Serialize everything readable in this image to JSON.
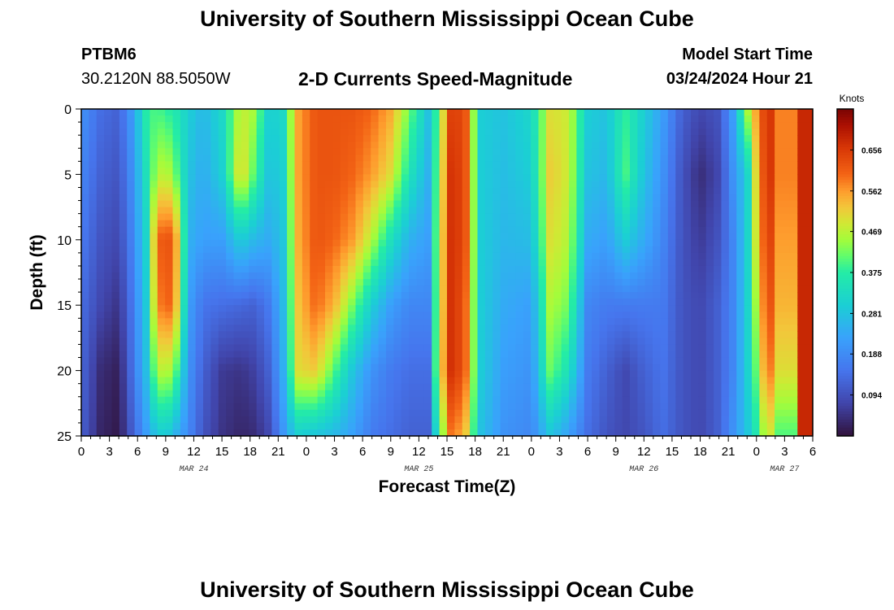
{
  "header": {
    "title": "University of Southern Mississippi Ocean Cube",
    "station": "PTBM6",
    "coords": "30.2120N  88.5050W",
    "subtitle": "2-D Currents Speed-Magnitude",
    "model_start_label": "Model Start Time",
    "model_start_value": "03/24/2024 Hour 21"
  },
  "footer": {
    "title": "University of Southern Mississippi Ocean Cube"
  },
  "chart_data": {
    "type": "heatmap",
    "title": "2-D Currents Speed-Magnitude",
    "xlabel": "Forecast Time(Z)",
    "ylabel": "Depth (ft)",
    "x_range_hours": [
      0,
      78
    ],
    "y_range_ft": [
      0,
      25
    ],
    "y_ticks": [
      "0",
      "5",
      "10",
      "15",
      "20",
      "25"
    ],
    "x_ticks": [
      "0",
      "3",
      "6",
      "9",
      "12",
      "15",
      "18",
      "21",
      "0",
      "3",
      "6",
      "9",
      "12",
      "15",
      "18",
      "21",
      "0",
      "3",
      "6",
      "9",
      "12",
      "15",
      "18",
      "21",
      "0",
      "3",
      "6"
    ],
    "day_labels": [
      {
        "label": "MAR 24",
        "hour": 12
      },
      {
        "label": "MAR 25",
        "hour": 36
      },
      {
        "label": "MAR 26",
        "hour": 60
      },
      {
        "label": "MAR 27",
        "hour": 75
      }
    ],
    "colorbar": {
      "unit": "Knots",
      "min": 0.0,
      "max": 0.75,
      "ticks": [
        "0.656",
        "0.562",
        "0.469",
        "0.375",
        "0.281",
        "0.188",
        "0.094"
      ],
      "tick_values": [
        0.656,
        0.562,
        0.469,
        0.375,
        0.281,
        0.188,
        0.094
      ]
    },
    "profiles": [
      {
        "hour": 0,
        "depths": [
          0,
          5,
          10,
          15,
          20,
          25
        ],
        "speeds": [
          0.2,
          0.18,
          0.16,
          0.14,
          0.13,
          0.12
        ]
      },
      {
        "hour": 2,
        "depths": [
          0,
          5,
          10,
          15,
          20,
          25
        ],
        "speeds": [
          0.14,
          0.12,
          0.1,
          0.08,
          0.04,
          0.03
        ]
      },
      {
        "hour": 4,
        "depths": [
          0,
          5,
          10,
          15,
          20,
          25
        ],
        "speeds": [
          0.12,
          0.1,
          0.08,
          0.05,
          0.02,
          0.01
        ]
      },
      {
        "hour": 5.5,
        "depths": [
          0,
          5,
          10,
          15,
          20,
          25
        ],
        "speeds": [
          0.22,
          0.2,
          0.18,
          0.16,
          0.15,
          0.12
        ]
      },
      {
        "hour": 7,
        "depths": [
          0,
          5,
          10,
          15,
          20,
          25
        ],
        "speeds": [
          0.38,
          0.35,
          0.32,
          0.3,
          0.28,
          0.22
        ]
      },
      {
        "hour": 8,
        "depths": [
          0,
          5,
          10,
          15,
          20,
          25
        ],
        "speeds": [
          0.4,
          0.45,
          0.58,
          0.55,
          0.45,
          0.28
        ]
      },
      {
        "hour": 9,
        "depths": [
          0,
          5,
          10,
          15,
          20,
          25
        ],
        "speeds": [
          0.38,
          0.48,
          0.64,
          0.62,
          0.48,
          0.3
        ]
      },
      {
        "hour": 10,
        "depths": [
          0,
          5,
          10,
          15,
          20,
          25
        ],
        "speeds": [
          0.36,
          0.42,
          0.58,
          0.56,
          0.42,
          0.25
        ]
      },
      {
        "hour": 11.5,
        "depths": [
          0,
          5,
          10,
          15,
          20,
          25
        ],
        "speeds": [
          0.3,
          0.28,
          0.25,
          0.22,
          0.2,
          0.18
        ]
      },
      {
        "hour": 13,
        "depths": [
          0,
          5,
          10,
          15,
          20,
          25
        ],
        "speeds": [
          0.26,
          0.24,
          0.22,
          0.15,
          0.12,
          0.1
        ]
      },
      {
        "hour": 15,
        "depths": [
          0,
          5,
          10,
          15,
          20,
          25
        ],
        "speeds": [
          0.32,
          0.3,
          0.22,
          0.14,
          0.06,
          0.05
        ]
      },
      {
        "hour": 17,
        "depths": [
          0,
          5,
          10,
          15,
          20,
          25
        ],
        "speeds": [
          0.48,
          0.52,
          0.3,
          0.13,
          0.05,
          0.03
        ]
      },
      {
        "hour": 18.5,
        "depths": [
          0,
          5,
          10,
          15,
          20,
          25
        ],
        "speeds": [
          0.45,
          0.4,
          0.26,
          0.12,
          0.07,
          0.04
        ]
      },
      {
        "hour": 20,
        "depths": [
          0,
          5,
          10,
          15,
          20,
          25
        ],
        "speeds": [
          0.3,
          0.28,
          0.24,
          0.16,
          0.12,
          0.08
        ]
      },
      {
        "hour": 21.5,
        "depths": [
          0,
          5,
          10,
          15,
          20,
          25
        ],
        "speeds": [
          0.32,
          0.3,
          0.28,
          0.26,
          0.24,
          0.2
        ]
      },
      {
        "hour": 23,
        "depths": [
          0,
          5,
          10,
          15,
          20,
          25
        ],
        "speeds": [
          0.55,
          0.55,
          0.54,
          0.52,
          0.5,
          0.3
        ]
      },
      {
        "hour": 25,
        "depths": [
          0,
          5,
          10,
          15,
          20,
          25
        ],
        "speeds": [
          0.62,
          0.62,
          0.62,
          0.6,
          0.52,
          0.28
        ]
      },
      {
        "hour": 27,
        "depths": [
          0,
          5,
          10,
          15,
          20,
          25
        ],
        "speeds": [
          0.62,
          0.62,
          0.6,
          0.54,
          0.4,
          0.26
        ]
      },
      {
        "hour": 29,
        "depths": [
          0,
          5,
          10,
          15,
          20,
          25
        ],
        "speeds": [
          0.62,
          0.6,
          0.56,
          0.42,
          0.28,
          0.22
        ]
      },
      {
        "hour": 31,
        "depths": [
          0,
          5,
          10,
          15,
          20,
          25
        ],
        "speeds": [
          0.6,
          0.56,
          0.46,
          0.3,
          0.2,
          0.16
        ]
      },
      {
        "hour": 33,
        "depths": [
          0,
          5,
          10,
          15,
          20,
          25
        ],
        "speeds": [
          0.55,
          0.5,
          0.34,
          0.22,
          0.16,
          0.14
        ]
      },
      {
        "hour": 35,
        "depths": [
          0,
          5,
          10,
          15,
          20,
          25
        ],
        "speeds": [
          0.42,
          0.35,
          0.25,
          0.18,
          0.14,
          0.12
        ]
      },
      {
        "hour": 37,
        "depths": [
          0,
          5,
          10,
          15,
          20,
          25
        ],
        "speeds": [
          0.28,
          0.25,
          0.22,
          0.18,
          0.14,
          0.12
        ]
      },
      {
        "hour": 38,
        "depths": [
          0,
          5,
          10,
          15,
          20,
          25
        ],
        "speeds": [
          0.4,
          0.42,
          0.44,
          0.44,
          0.46,
          0.35
        ]
      },
      {
        "hour": 39.5,
        "depths": [
          0,
          5,
          10,
          15,
          20,
          25
        ],
        "speeds": [
          0.66,
          0.68,
          0.68,
          0.68,
          0.68,
          0.6
        ]
      },
      {
        "hour": 41,
        "depths": [
          0,
          5,
          10,
          15,
          20,
          25
        ],
        "speeds": [
          0.62,
          0.62,
          0.62,
          0.6,
          0.6,
          0.52
        ]
      },
      {
        "hour": 42.5,
        "depths": [
          0,
          5,
          10,
          15,
          20,
          25
        ],
        "speeds": [
          0.3,
          0.3,
          0.3,
          0.3,
          0.3,
          0.28
        ]
      },
      {
        "hour": 45,
        "depths": [
          0,
          5,
          10,
          15,
          20,
          25
        ],
        "speeds": [
          0.28,
          0.27,
          0.26,
          0.24,
          0.22,
          0.2
        ]
      },
      {
        "hour": 48,
        "depths": [
          0,
          5,
          10,
          15,
          20,
          25
        ],
        "speeds": [
          0.32,
          0.3,
          0.27,
          0.22,
          0.2,
          0.18
        ]
      },
      {
        "hour": 50,
        "depths": [
          0,
          5,
          10,
          15,
          20,
          25
        ],
        "speeds": [
          0.5,
          0.52,
          0.5,
          0.46,
          0.42,
          0.28
        ]
      },
      {
        "hour": 52,
        "depths": [
          0,
          5,
          10,
          15,
          20,
          25
        ],
        "speeds": [
          0.48,
          0.48,
          0.46,
          0.42,
          0.34,
          0.22
        ]
      },
      {
        "hour": 54,
        "depths": [
          0,
          5,
          10,
          15,
          20,
          25
        ],
        "speeds": [
          0.3,
          0.28,
          0.24,
          0.18,
          0.16,
          0.14
        ]
      },
      {
        "hour": 56,
        "depths": [
          0,
          5,
          10,
          15,
          20,
          25
        ],
        "speeds": [
          0.28,
          0.26,
          0.22,
          0.16,
          0.12,
          0.1
        ]
      },
      {
        "hour": 58,
        "depths": [
          0,
          5,
          10,
          15,
          20,
          25
        ],
        "speeds": [
          0.38,
          0.4,
          0.3,
          0.16,
          0.08,
          0.08
        ]
      },
      {
        "hour": 60,
        "depths": [
          0,
          5,
          10,
          15,
          20,
          25
        ],
        "speeds": [
          0.3,
          0.28,
          0.24,
          0.16,
          0.12,
          0.1
        ]
      },
      {
        "hour": 62,
        "depths": [
          0,
          5,
          10,
          15,
          20,
          25
        ],
        "speeds": [
          0.22,
          0.2,
          0.18,
          0.16,
          0.15,
          0.14
        ]
      },
      {
        "hour": 64,
        "depths": [
          0,
          5,
          10,
          15,
          20,
          25
        ],
        "speeds": [
          0.12,
          0.1,
          0.1,
          0.1,
          0.1,
          0.1
        ]
      },
      {
        "hour": 66,
        "depths": [
          0,
          5,
          10,
          15,
          20,
          25
        ],
        "speeds": [
          0.08,
          0.04,
          0.06,
          0.08,
          0.08,
          0.08
        ]
      },
      {
        "hour": 68,
        "depths": [
          0,
          5,
          10,
          15,
          20,
          25
        ],
        "speeds": [
          0.1,
          0.08,
          0.1,
          0.12,
          0.12,
          0.12
        ]
      },
      {
        "hour": 69.5,
        "depths": [
          0,
          5,
          10,
          15,
          20,
          25
        ],
        "speeds": [
          0.22,
          0.2,
          0.18,
          0.18,
          0.18,
          0.2
        ]
      },
      {
        "hour": 71,
        "depths": [
          0,
          5,
          10,
          15,
          20,
          25
        ],
        "speeds": [
          0.45,
          0.3,
          0.3,
          0.3,
          0.3,
          0.28
        ]
      },
      {
        "hour": 72,
        "depths": [
          0,
          5,
          10,
          15,
          20,
          25
        ],
        "speeds": [
          0.56,
          0.52,
          0.5,
          0.46,
          0.42,
          0.36
        ]
      },
      {
        "hour": 73,
        "depths": [
          0,
          5,
          10,
          15,
          20,
          25
        ],
        "speeds": [
          0.66,
          0.66,
          0.64,
          0.62,
          0.58,
          0.48
        ]
      }
    ]
  }
}
